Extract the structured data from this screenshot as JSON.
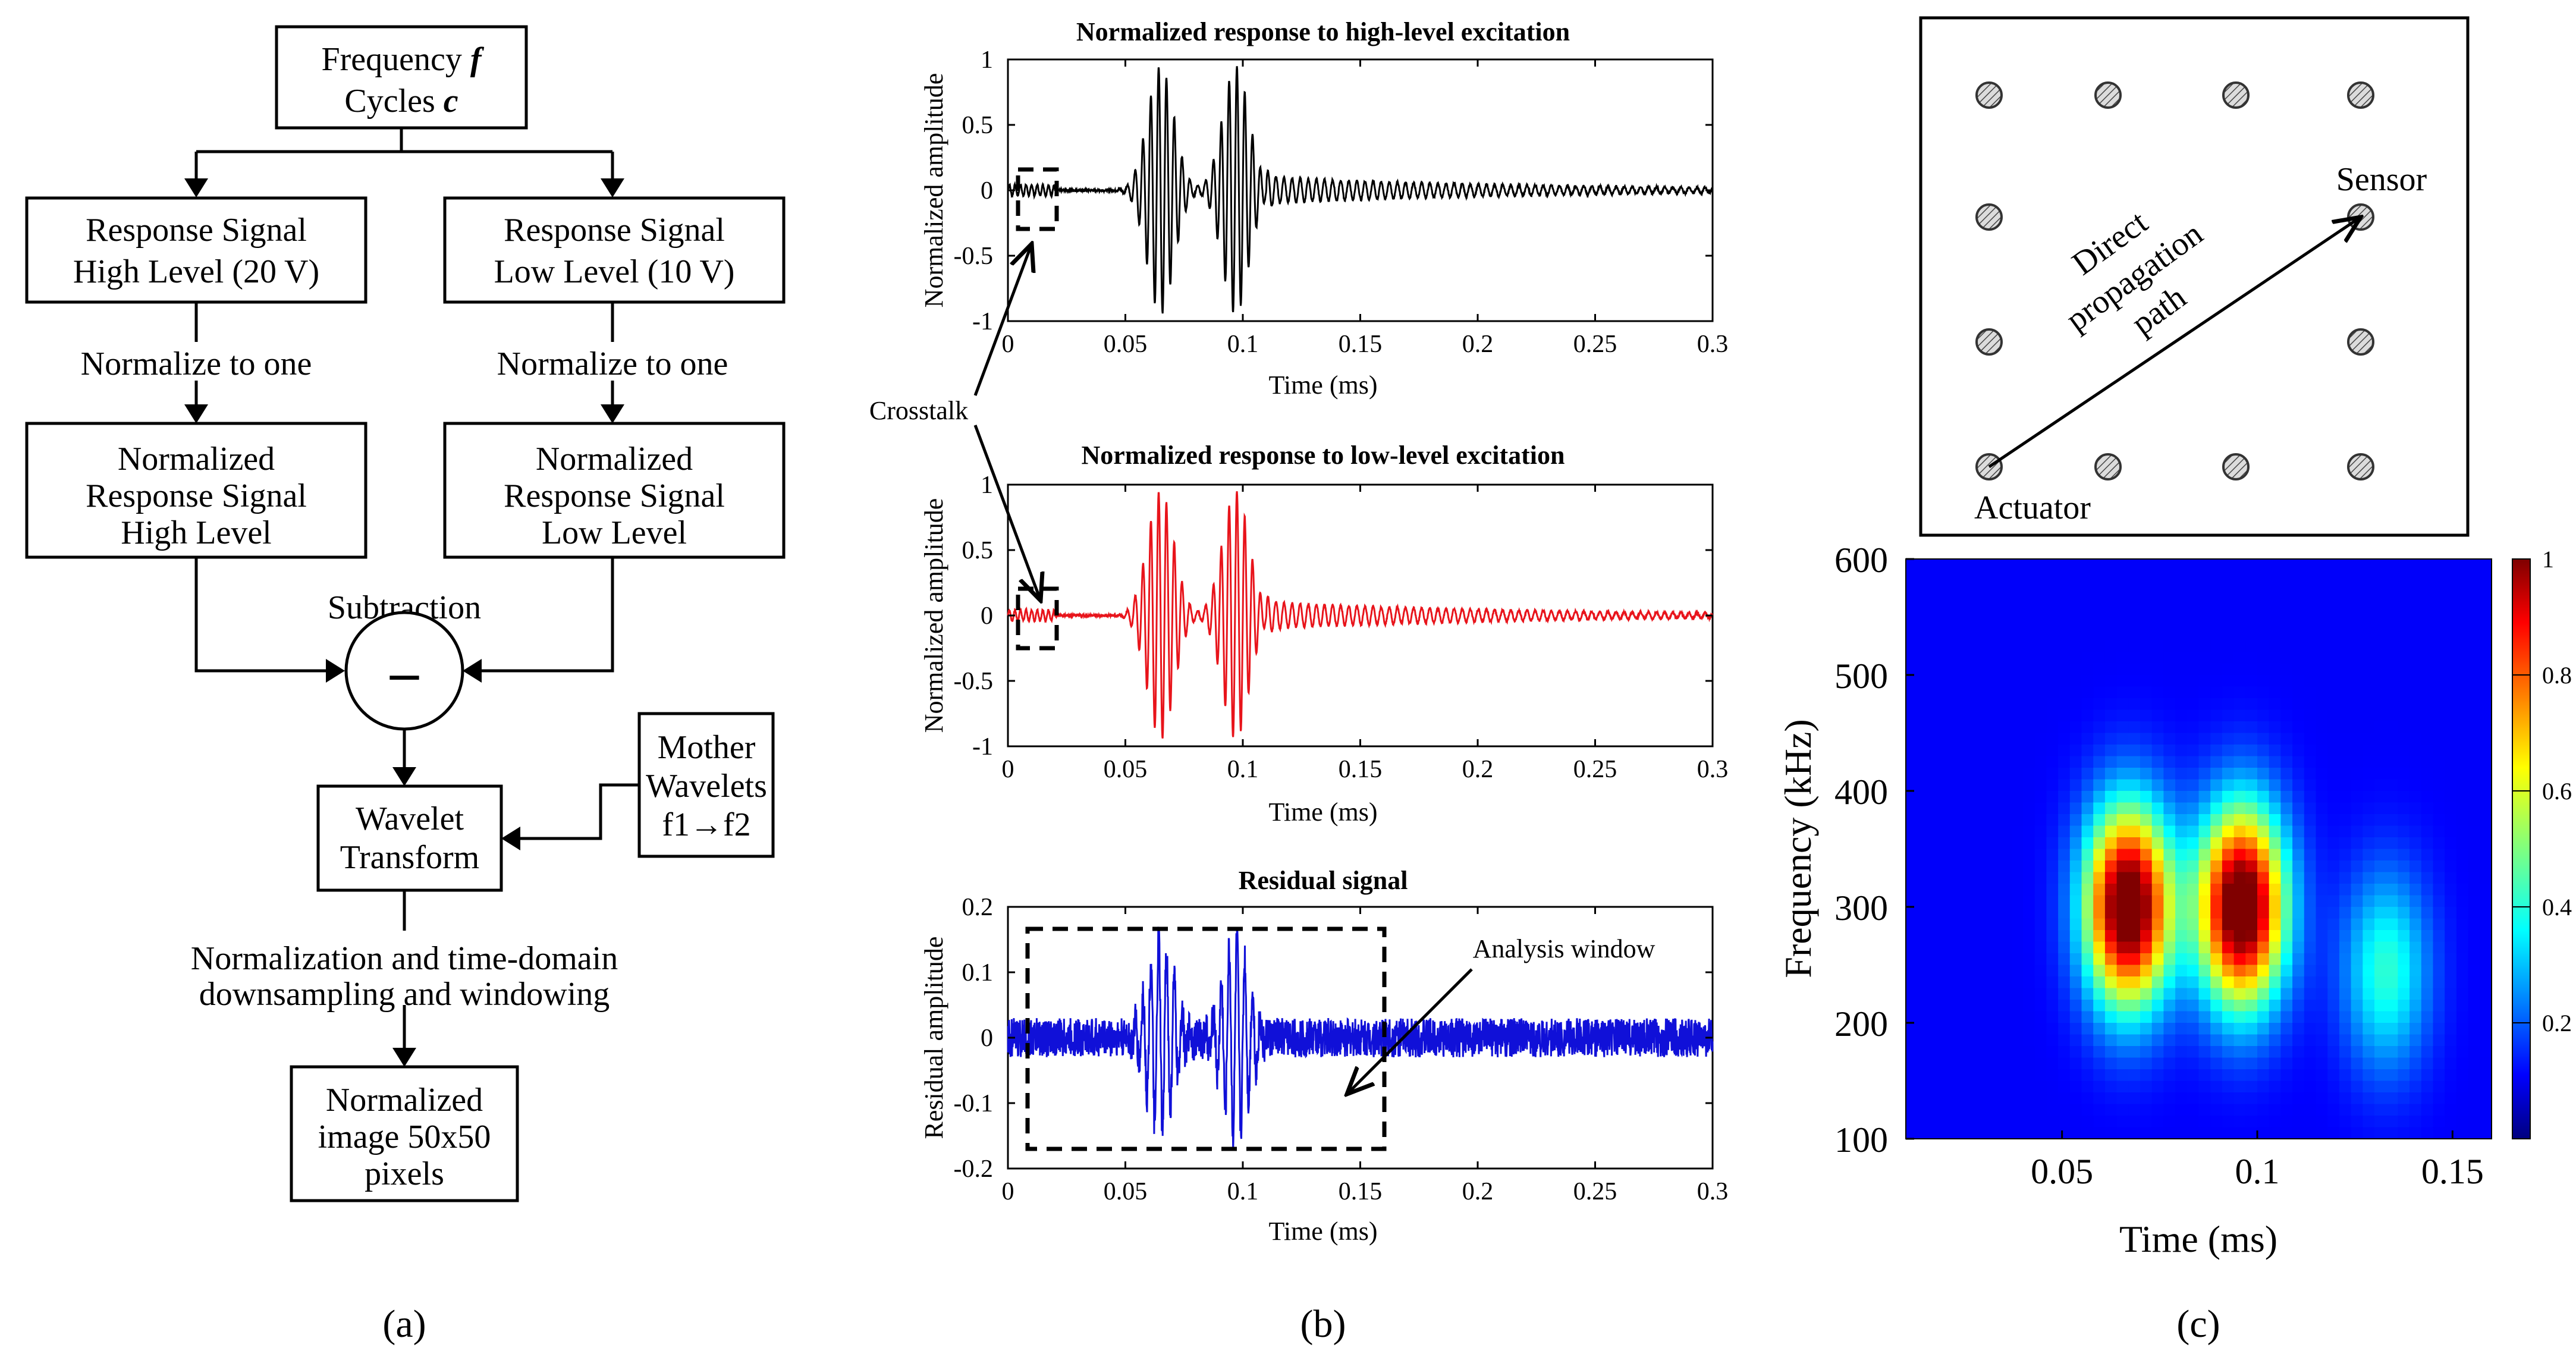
{
  "panel_labels": {
    "a": "(a)",
    "b": "(b)",
    "c": "(c)"
  },
  "flowchart": {
    "freq_label": "Frequency",
    "freq_symbol": "f",
    "cycles_label": "Cycles",
    "cycles_symbol": "c",
    "resp_high_line1": "Response Signal",
    "resp_high_line2": "High Level (20 V)",
    "resp_low_line1": "Response Signal",
    "resp_low_line2": "Low Level (10 V)",
    "normalize_left": "Normalize to one",
    "normalize_right": "Normalize to one",
    "norm_high": [
      "Normalized",
      "Response Signal",
      "High Level"
    ],
    "norm_low": [
      "Normalized",
      "Response Signal",
      "Low Level"
    ],
    "subtraction": "Subtraction",
    "minus": "–",
    "mother": [
      "Mother",
      "Wavelets",
      "f1→f2"
    ],
    "wavelet": [
      "Wavelet",
      "Transform"
    ],
    "normalization_note": [
      "Normalization and time-domain",
      "downsampling and windowing"
    ],
    "output": [
      "Normalized",
      "image 50x50",
      "pixels"
    ]
  },
  "chart_data": [
    {
      "type": "line",
      "title": "Normalized response to high-level excitation",
      "xlabel": "Time (ms)",
      "ylabel": "Normalized amplitude",
      "xlim": [
        0,
        0.3
      ],
      "ylim": [
        -1,
        1
      ],
      "xticks": [
        "0",
        "0.05",
        "0.1",
        "0.15",
        "0.2",
        "0.25",
        "0.3"
      ],
      "yticks": [
        "1",
        "0.5",
        "0",
        "-0.5",
        "-1"
      ],
      "color": "#000000",
      "series": [
        {
          "name": "high-level response",
          "packets": [
            {
              "center_ms": 0.065,
              "amplitude": 0.95
            },
            {
              "center_ms": 0.097,
              "amplitude": 0.95
            }
          ],
          "tail_amplitude": 0.1
        }
      ]
    },
    {
      "type": "line",
      "title": "Normalized response to low-level excitation",
      "xlabel": "Time (ms)",
      "ylabel": "Normalized amplitude",
      "xlim": [
        0,
        0.3
      ],
      "ylim": [
        -1,
        1
      ],
      "xticks": [
        "0",
        "0.05",
        "0.1",
        "0.15",
        "0.2",
        "0.25",
        "0.3"
      ],
      "yticks": [
        "1",
        "0.5",
        "0",
        "-0.5",
        "-1"
      ],
      "color": "#e8141b",
      "series": [
        {
          "name": "low-level response",
          "packets": [
            {
              "center_ms": 0.065,
              "amplitude": 0.95
            },
            {
              "center_ms": 0.097,
              "amplitude": 0.95
            }
          ],
          "tail_amplitude": 0.1
        }
      ]
    },
    {
      "type": "line",
      "title": "Residual signal",
      "xlabel": "Time (ms)",
      "ylabel": "Residual amplitude",
      "xlim": [
        0,
        0.3
      ],
      "ylim": [
        -0.2,
        0.2
      ],
      "xticks": [
        "0",
        "0.05",
        "0.1",
        "0.15",
        "0.2",
        "0.25",
        "0.3"
      ],
      "yticks": [
        "0.2",
        "0.1",
        "0",
        "-0.1",
        "-0.2"
      ],
      "color": "#1010d8",
      "annotation": "Analysis window",
      "series": [
        {
          "name": "residual",
          "packets": [
            {
              "center_ms": 0.065,
              "amplitude": 0.15
            },
            {
              "center_ms": 0.097,
              "amplitude": 0.15
            }
          ],
          "noise_amplitude": 0.03
        }
      ]
    },
    {
      "type": "heatmap",
      "xlabel": "Time (ms)",
      "ylabel": "Frequency (kHz)",
      "xlim": [
        0.01,
        0.16
      ],
      "ylim": [
        100,
        600
      ],
      "xticks": [
        "0.05",
        "0.1",
        "0.15"
      ],
      "yticks": [
        "600",
        "500",
        "400",
        "300",
        "200",
        "100"
      ],
      "colorbar_ticks": [
        "1",
        "0.8",
        "0.6",
        "0.4",
        "0.2"
      ],
      "peaks": [
        {
          "time_ms": 0.067,
          "freq_khz": 300,
          "value": 1.0
        },
        {
          "time_ms": 0.096,
          "freq_khz": 300,
          "value": 1.0
        },
        {
          "time_ms": 0.133,
          "freq_khz": 245,
          "value": 0.3
        }
      ]
    }
  ],
  "crosstalk_label": "Crosstalk",
  "plate": {
    "sensor_label": "Sensor",
    "actuator_label": "Actuator",
    "path_label": [
      "Direct",
      "propagation",
      "path"
    ]
  }
}
